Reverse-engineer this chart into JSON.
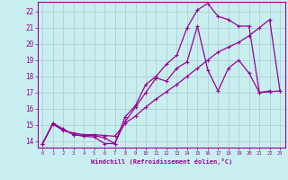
{
  "xlabel": "Windchill (Refroidissement éolien,°C)",
  "bg_color": "#c8eef0",
  "grid_color": "#aacccc",
  "line_color": "#990099",
  "xlim": [
    -0.5,
    23.5
  ],
  "ylim": [
    13.6,
    22.6
  ],
  "xticks": [
    0,
    1,
    2,
    3,
    4,
    5,
    6,
    7,
    8,
    9,
    10,
    11,
    12,
    13,
    14,
    15,
    16,
    17,
    18,
    19,
    20,
    21,
    22,
    23
  ],
  "yticks": [
    14,
    15,
    16,
    17,
    18,
    19,
    20,
    21,
    22
  ],
  "line1_x": [
    0,
    1,
    2,
    3,
    4,
    5,
    6,
    7,
    8,
    9,
    10,
    11,
    12,
    13,
    14,
    15,
    16,
    17,
    18,
    19,
    20,
    21,
    22
  ],
  "line1_y": [
    13.85,
    15.1,
    14.75,
    14.4,
    14.3,
    14.25,
    13.85,
    13.85,
    15.2,
    16.1,
    17.0,
    17.9,
    17.7,
    18.5,
    18.9,
    21.1,
    18.4,
    17.1,
    18.5,
    19.0,
    18.2,
    17.0,
    17.1
  ],
  "line2_x": [
    0,
    1,
    2,
    3,
    4,
    5,
    6,
    7,
    8,
    9,
    10,
    11,
    12,
    13,
    14,
    15,
    16,
    17,
    18,
    19,
    20,
    21,
    22,
    23
  ],
  "line2_y": [
    13.85,
    15.1,
    14.7,
    14.4,
    14.35,
    14.35,
    14.2,
    13.85,
    15.5,
    16.2,
    17.5,
    18.0,
    18.75,
    19.3,
    21.0,
    22.1,
    22.5,
    21.7,
    21.5,
    21.1,
    21.1,
    17.0,
    17.05,
    17.1
  ],
  "line3_x": [
    0,
    1,
    2,
    3,
    4,
    5,
    6,
    7,
    8,
    9,
    10,
    11,
    12,
    13,
    14,
    15,
    16,
    17,
    18,
    19,
    20,
    21,
    22,
    23
  ],
  "line3_y": [
    13.85,
    15.05,
    14.65,
    14.5,
    14.4,
    14.4,
    14.35,
    14.3,
    15.1,
    15.55,
    16.1,
    16.6,
    17.05,
    17.5,
    18.0,
    18.5,
    19.0,
    19.5,
    19.8,
    20.1,
    20.5,
    21.0,
    21.5,
    17.1
  ]
}
